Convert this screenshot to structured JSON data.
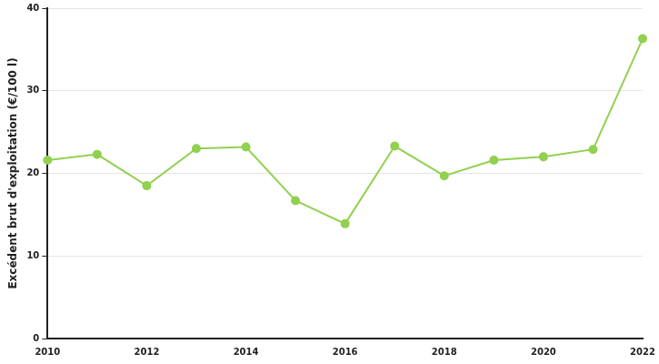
{
  "chart_data": {
    "type": "line",
    "y_label": "Excédent brut d'exploitation (€/100 l)",
    "x": [
      2010,
      2011,
      2012,
      2013,
      2014,
      2015,
      2016,
      2017,
      2018,
      2019,
      2020,
      2021,
      2022
    ],
    "values": [
      21.6,
      22.3,
      18.5,
      23.0,
      23.2,
      16.7,
      13.9,
      23.3,
      19.7,
      21.6,
      22.0,
      22.9,
      36.3
    ],
    "color": "#92d050",
    "marker": "circle",
    "xlim": [
      2010,
      2022
    ],
    "xticks": [
      2010,
      2012,
      2014,
      2016,
      2018,
      2020,
      2022
    ],
    "ylim": [
      0,
      40
    ],
    "yticks": [
      0,
      10,
      20,
      30,
      40
    ],
    "grid": true
  }
}
